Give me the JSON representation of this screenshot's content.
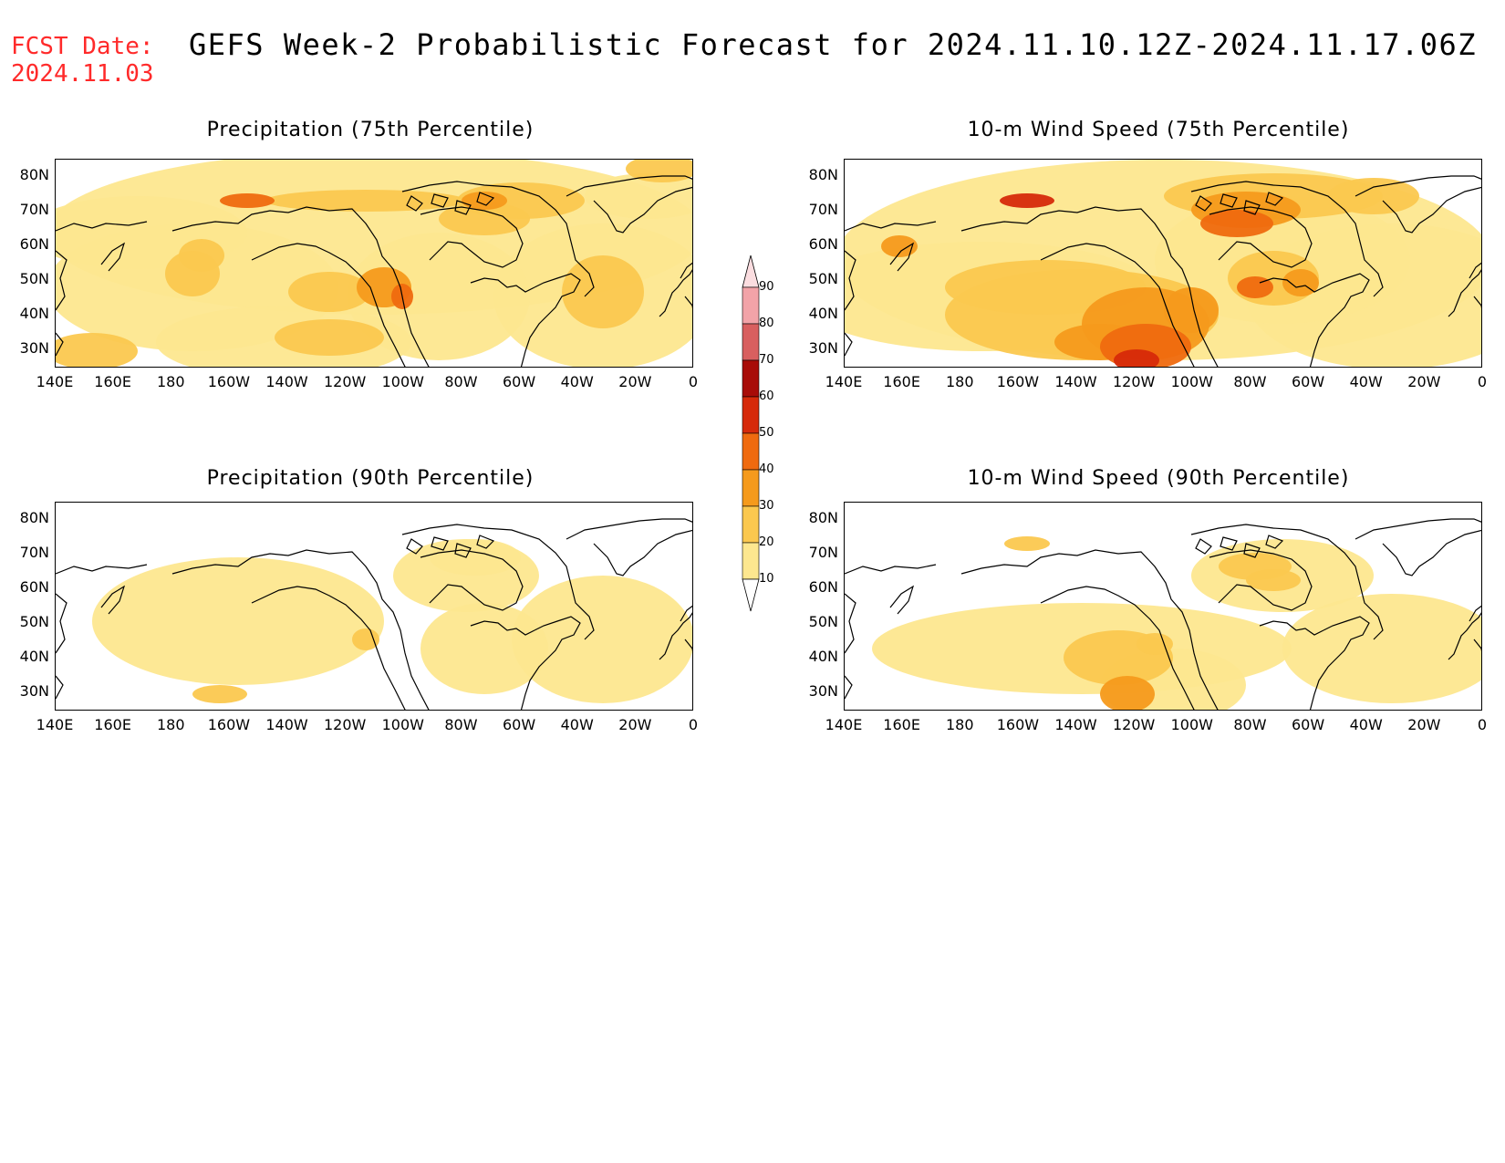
{
  "header": {
    "fcst_label": "FCST Date:",
    "fcst_date": "2024.11.03",
    "title": "GEFS Week-2 Probabilistic Forecast for 2024.11.10.12Z-2024.11.17.06Z"
  },
  "panels": [
    {
      "title": "Precipitation (75th Percentile)",
      "field": "precip-75"
    },
    {
      "title": "10-m Wind Speed (75th Percentile)",
      "field": "wind-75"
    },
    {
      "title": "Precipitation (90th Percentile)",
      "field": "precip-90"
    },
    {
      "title": "10-m Wind Speed (90th Percentile)",
      "field": "wind-90"
    }
  ],
  "axes": {
    "lat_labels": [
      "80N",
      "70N",
      "60N",
      "50N",
      "40N",
      "30N"
    ],
    "lon_labels": [
      "140E",
      "160E",
      "180",
      "160W",
      "140W",
      "120W",
      "100W",
      "80W",
      "60W",
      "40W",
      "20W",
      "0"
    ]
  },
  "colorbar": {
    "levels": [
      "10",
      "20",
      "30",
      "40",
      "50",
      "60",
      "70",
      "80",
      "90"
    ],
    "colors": [
      "#fff8b0",
      "#fde78f",
      "#fbc84f",
      "#f59a1c",
      "#ef6a0f",
      "#d62a0a",
      "#a80c08",
      "#d85f5f",
      "#f2a3a8",
      "#fbdde0"
    ]
  },
  "colors": {
    "fcst_text": "#ff2a2a",
    "coastline": "#000000"
  }
}
